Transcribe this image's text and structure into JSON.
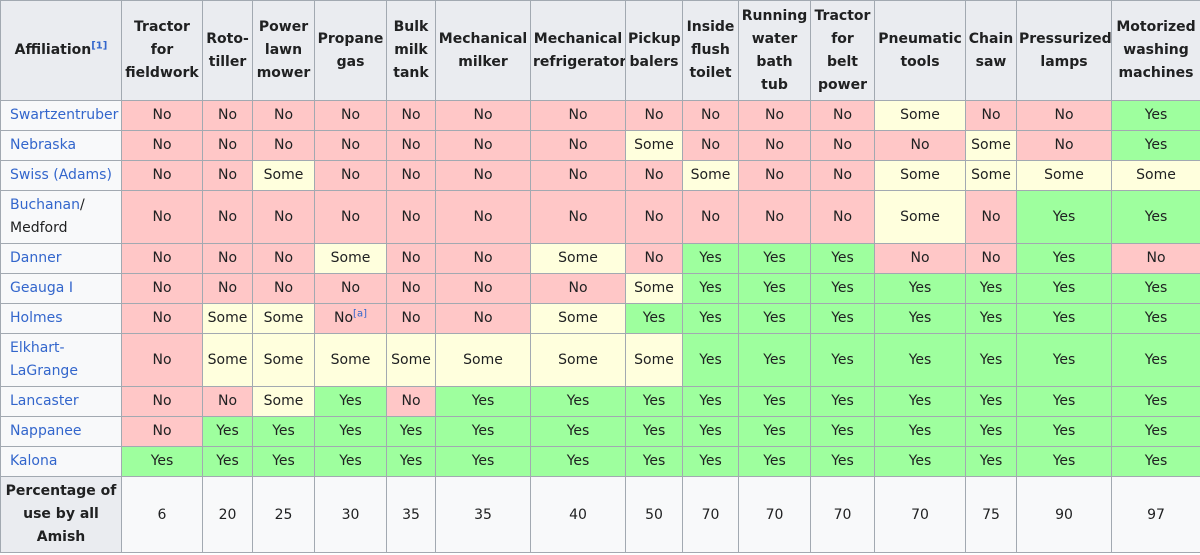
{
  "header": {
    "affiliation_label": "Affiliation",
    "affiliation_ref": "[1]",
    "columns": [
      [
        "Tractor",
        "for",
        "fieldwork"
      ],
      [
        "Roto-",
        "tiller"
      ],
      [
        "Power",
        "lawn",
        "mower"
      ],
      [
        "Propane",
        "gas"
      ],
      [
        "Bulk",
        "milk",
        "tank"
      ],
      [
        "Mechanical",
        "milker"
      ],
      [
        "Mechanical",
        "refrigerator"
      ],
      [
        "Pickup",
        "balers"
      ],
      [
        "Inside",
        "flush",
        "toilet"
      ],
      [
        "Running",
        "water",
        "bath",
        "tub"
      ],
      [
        "Tractor",
        "for",
        "belt",
        "power"
      ],
      [
        "Pneumatic",
        "tools"
      ],
      [
        "Chain",
        "saw"
      ],
      [
        "Pressurized",
        "lamps"
      ],
      [
        "Motorized",
        "washing",
        "machines"
      ]
    ]
  },
  "rows": [
    {
      "name": "Swartzentruber",
      "cells": [
        "No",
        "No",
        "No",
        "No",
        "No",
        "No",
        "No",
        "No",
        "No",
        "No",
        "No",
        "Some",
        "No",
        "No",
        "Yes"
      ]
    },
    {
      "name": "Nebraska",
      "cells": [
        "No",
        "No",
        "No",
        "No",
        "No",
        "No",
        "No",
        "Some",
        "No",
        "No",
        "No",
        "No",
        "Some",
        "No",
        "Yes"
      ]
    },
    {
      "name": "Swiss (Adams)",
      "cells": [
        "No",
        "No",
        "Some",
        "No",
        "No",
        "No",
        "No",
        "No",
        "Some",
        "No",
        "No",
        "Some",
        "Some",
        "Some",
        "Some"
      ]
    },
    {
      "name_part1": "Buchanan",
      "name_sep": "/",
      "name_part2": "Medford",
      "cells": [
        "No",
        "No",
        "No",
        "No",
        "No",
        "No",
        "No",
        "No",
        "No",
        "No",
        "No",
        "Some",
        "No",
        "Yes",
        "Yes"
      ]
    },
    {
      "name": "Danner",
      "cells": [
        "No",
        "No",
        "No",
        "Some",
        "No",
        "No",
        "Some",
        "No",
        "Yes",
        "Yes",
        "Yes",
        "No",
        "No",
        "Yes",
        "No"
      ]
    },
    {
      "name": "Geauga I",
      "cells": [
        "No",
        "No",
        "No",
        "No",
        "No",
        "No",
        "No",
        "Some",
        "Yes",
        "Yes",
        "Yes",
        "Yes",
        "Yes",
        "Yes",
        "Yes"
      ]
    },
    {
      "name": "Holmes",
      "cells": [
        "No",
        "Some",
        "Some",
        "No",
        "No",
        "No",
        "Some",
        "Yes",
        "Yes",
        "Yes",
        "Yes",
        "Yes",
        "Yes",
        "Yes",
        "Yes"
      ],
      "propane_note": "[a]"
    },
    {
      "name_part1": "Elkhart-",
      "name_part2": "LaGrange",
      "cells": [
        "No",
        "Some",
        "Some",
        "Some",
        "Some",
        "Some",
        "Some",
        "Some",
        "Yes",
        "Yes",
        "Yes",
        "Yes",
        "Yes",
        "Yes",
        "Yes"
      ]
    },
    {
      "name": "Lancaster",
      "cells": [
        "No",
        "No",
        "Some",
        "Yes",
        "No",
        "Yes",
        "Yes",
        "Yes",
        "Yes",
        "Yes",
        "Yes",
        "Yes",
        "Yes",
        "Yes",
        "Yes"
      ]
    },
    {
      "name": "Nappanee",
      "cells": [
        "No",
        "Yes",
        "Yes",
        "Yes",
        "Yes",
        "Yes",
        "Yes",
        "Yes",
        "Yes",
        "Yes",
        "Yes",
        "Yes",
        "Yes",
        "Yes",
        "Yes"
      ]
    },
    {
      "name": "Kalona",
      "cells": [
        "Yes",
        "Yes",
        "Yes",
        "Yes",
        "Yes",
        "Yes",
        "Yes",
        "Yes",
        "Yes",
        "Yes",
        "Yes",
        "Yes",
        "Yes",
        "Yes",
        "Yes"
      ]
    }
  ],
  "footer": {
    "label_lines": [
      "Percentage of",
      "use by all",
      "Amish"
    ],
    "values": [
      "6",
      "20",
      "25",
      "30",
      "35",
      "35",
      "40",
      "50",
      "70",
      "70",
      "70",
      "70",
      "75",
      "90",
      "97"
    ]
  },
  "colors": {
    "no": "#ffc7c7",
    "some": "#ffffdd",
    "yes": "#9eff9e",
    "header": "#eaecf0",
    "link": "#3366cc",
    "border": "#a2a9b1"
  }
}
